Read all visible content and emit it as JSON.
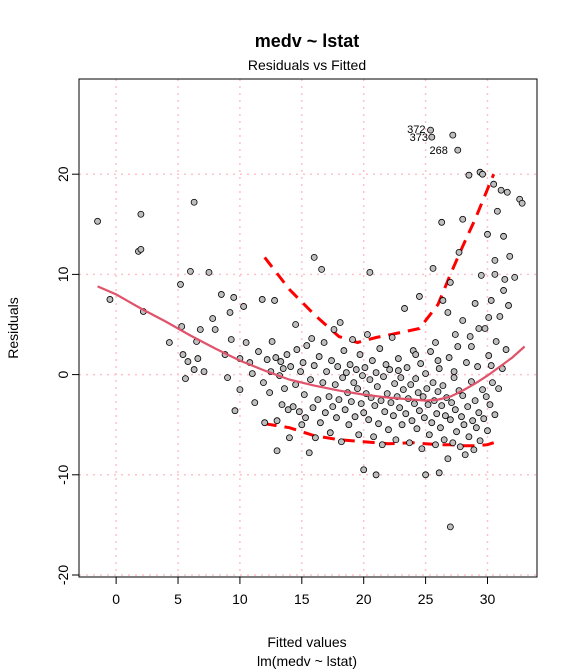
{
  "chart_data": {
    "type": "scatter",
    "title": "medv ~ lstat",
    "subtitle": "Residuals vs Fitted",
    "xlabel": "Fitted values",
    "xlabel2": "lm(medv ~ lstat)",
    "ylabel": "Residuals",
    "xlim": [
      -3,
      34
    ],
    "ylim": [
      -20.2,
      29.5
    ],
    "x_ticks": [
      0,
      5,
      10,
      15,
      20,
      25,
      30
    ],
    "y_ticks": [
      -20,
      -10,
      0,
      10,
      20
    ],
    "grid": true,
    "colors": {
      "point_fill": "#bebebe",
      "point_stroke": "#000000",
      "smooth_line": "#df536b",
      "band_line": "#ff0000",
      "grid": "#ffc0cb"
    },
    "annotations": [
      {
        "label": "372",
        "x": 25.4,
        "y": 24.5
      },
      {
        "label": "373",
        "x": 25.6,
        "y": 23.7
      },
      {
        "label": "268",
        "x": 27.2,
        "y": 22.4
      }
    ],
    "smooth": {
      "x": [
        -1.5,
        0,
        2,
        4,
        6,
        8,
        10,
        12,
        14,
        16,
        18,
        20,
        22,
        24,
        25,
        26,
        27,
        28,
        29,
        30,
        31,
        32,
        33
      ],
      "y": [
        8.8,
        8.0,
        6.6,
        5.3,
        3.9,
        2.6,
        1.4,
        0.4,
        -0.5,
        -1.1,
        -1.6,
        -2.0,
        -2.3,
        -2.5,
        -2.6,
        -2.5,
        -2.2,
        -1.6,
        -0.9,
        -0.1,
        0.8,
        1.7,
        2.8
      ]
    },
    "upper_band": {
      "x": [
        12,
        14,
        16,
        18,
        19.5,
        21,
        23,
        24.5,
        26,
        27,
        28,
        29,
        30,
        30.5
      ],
      "y": [
        11.7,
        8.5,
        6.0,
        3.8,
        3.2,
        3.7,
        4.2,
        4.6,
        7.0,
        10.0,
        12.8,
        15.5,
        18.5,
        20.0
      ]
    },
    "lower_band": {
      "x": [
        12,
        14,
        16,
        18,
        20,
        22,
        24,
        25,
        26,
        27,
        28,
        29,
        30,
        30.5
      ],
      "y": [
        -4.9,
        -5.3,
        -6.1,
        -6.5,
        -6.7,
        -6.9,
        -6.8,
        -6.9,
        -7.0,
        -7.0,
        -7.1,
        -7.1,
        -7.0,
        -6.8
      ]
    },
    "points": [
      [
        -1.5,
        15.3
      ],
      [
        -0.5,
        7.5
      ],
      [
        1.8,
        12.3
      ],
      [
        2.0,
        16.0
      ],
      [
        2.0,
        12.5
      ],
      [
        2.2,
        6.3
      ],
      [
        4.3,
        3.2
      ],
      [
        5.2,
        9.0
      ],
      [
        5.3,
        4.8
      ],
      [
        5.4,
        2.0
      ],
      [
        5.6,
        -0.4
      ],
      [
        5.8,
        1.3
      ],
      [
        6.0,
        10.3
      ],
      [
        6.3,
        17.2
      ],
      [
        6.3,
        0.5
      ],
      [
        6.5,
        3.3
      ],
      [
        6.6,
        1.6
      ],
      [
        6.8,
        4.5
      ],
      [
        7.1,
        0.3
      ],
      [
        7.5,
        10.2
      ],
      [
        7.8,
        5.6
      ],
      [
        8.0,
        4.5
      ],
      [
        8.5,
        8.0
      ],
      [
        8.8,
        2.0
      ],
      [
        9.0,
        -0.3
      ],
      [
        9.2,
        6.2
      ],
      [
        9.3,
        3.5
      ],
      [
        9.5,
        7.7
      ],
      [
        9.6,
        -3.6
      ],
      [
        10.0,
        1.6
      ],
      [
        10.0,
        -1.5
      ],
      [
        10.3,
        6.8
      ],
      [
        10.5,
        3.2
      ],
      [
        10.8,
        1.2
      ],
      [
        11.0,
        0.1
      ],
      [
        11.2,
        -2.8
      ],
      [
        11.5,
        2.3
      ],
      [
        11.8,
        7.5
      ],
      [
        11.9,
        -0.8
      ],
      [
        12.0,
        -4.8
      ],
      [
        12.2,
        1.5
      ],
      [
        12.4,
        -1.8
      ],
      [
        12.5,
        0.3
      ],
      [
        12.6,
        3.3
      ],
      [
        12.8,
        7.4
      ],
      [
        12.9,
        1.7
      ],
      [
        13.0,
        -4.6
      ],
      [
        13.0,
        -7.6
      ],
      [
        13.2,
        -0.1
      ],
      [
        13.3,
        1.3
      ],
      [
        13.4,
        -3.0
      ],
      [
        13.5,
        0.6
      ],
      [
        13.6,
        -1.4
      ],
      [
        13.8,
        2.0
      ],
      [
        13.9,
        -3.5
      ],
      [
        14.0,
        -6.3
      ],
      [
        14.1,
        0.8
      ],
      [
        14.3,
        -3.2
      ],
      [
        14.5,
        5.0
      ],
      [
        14.5,
        -1.0
      ],
      [
        14.6,
        2.5
      ],
      [
        14.8,
        -3.7
      ],
      [
        14.9,
        0.3
      ],
      [
        15.0,
        -5.0
      ],
      [
        15.1,
        1.2
      ],
      [
        15.2,
        -2.0
      ],
      [
        15.3,
        -4.3
      ],
      [
        15.4,
        2.9
      ],
      [
        15.6,
        -7.8
      ],
      [
        15.7,
        -0.5
      ],
      [
        15.8,
        3.6
      ],
      [
        15.9,
        -3.3
      ],
      [
        16.0,
        11.7
      ],
      [
        16.0,
        0.9
      ],
      [
        16.1,
        -6.3
      ],
      [
        16.3,
        -2.5
      ],
      [
        16.4,
        1.8
      ],
      [
        16.5,
        -4.8
      ],
      [
        16.6,
        10.5
      ],
      [
        16.7,
        -0.8
      ],
      [
        16.8,
        3.2
      ],
      [
        16.9,
        -3.8
      ],
      [
        17.0,
        0.3
      ],
      [
        17.2,
        -2.2
      ],
      [
        17.3,
        -5.8
      ],
      [
        17.4,
        1.4
      ],
      [
        17.5,
        -3.2
      ],
      [
        17.6,
        4.5
      ],
      [
        17.7,
        -1.0
      ],
      [
        17.8,
        -4.3
      ],
      [
        17.9,
        0.8
      ],
      [
        18.0,
        -2.5
      ],
      [
        18.1,
        5.2
      ],
      [
        18.2,
        -6.7
      ],
      [
        18.3,
        -0.3
      ],
      [
        18.4,
        2.4
      ],
      [
        18.5,
        -3.5
      ],
      [
        18.6,
        0.2
      ],
      [
        18.7,
        -1.8
      ],
      [
        18.8,
        -5.0
      ],
      [
        18.9,
        1.0
      ],
      [
        19.0,
        -2.7
      ],
      [
        19.1,
        3.5
      ],
      [
        19.2,
        -0.8
      ],
      [
        19.3,
        -4.2
      ],
      [
        19.4,
        0.5
      ],
      [
        19.5,
        -1.4
      ],
      [
        19.6,
        -6.0
      ],
      [
        19.7,
        2.0
      ],
      [
        19.8,
        -2.9
      ],
      [
        19.9,
        -0.1
      ],
      [
        20.0,
        -9.5
      ],
      [
        20.0,
        -3.8
      ],
      [
        20.1,
        0.7
      ],
      [
        20.2,
        -1.9
      ],
      [
        20.3,
        4.0
      ],
      [
        20.4,
        -4.5
      ],
      [
        20.5,
        10.2
      ],
      [
        20.5,
        -0.5
      ],
      [
        20.6,
        -2.3
      ],
      [
        20.7,
        1.4
      ],
      [
        20.8,
        -6.2
      ],
      [
        20.9,
        -3.1
      ],
      [
        21.0,
        -10.0
      ],
      [
        21.0,
        0.2
      ],
      [
        21.1,
        -1.2
      ],
      [
        21.2,
        -4.9
      ],
      [
        21.3,
        2.6
      ],
      [
        21.4,
        -2.6
      ],
      [
        21.5,
        -7.0
      ],
      [
        21.6,
        -0.2
      ],
      [
        21.7,
        -3.7
      ],
      [
        21.8,
        1.0
      ],
      [
        21.9,
        -1.9
      ],
      [
        22.0,
        -5.5
      ],
      [
        22.1,
        0.5
      ],
      [
        22.2,
        -2.8
      ],
      [
        22.3,
        3.7
      ],
      [
        22.4,
        -4.1
      ],
      [
        22.5,
        -0.9
      ],
      [
        22.6,
        -6.5
      ],
      [
        22.7,
        -2.2
      ],
      [
        22.8,
        1.6
      ],
      [
        22.9,
        -3.3
      ],
      [
        23.0,
        -0.3
      ],
      [
        23.1,
        -5.0
      ],
      [
        23.2,
        -1.5
      ],
      [
        23.3,
        6.6
      ],
      [
        23.4,
        -3.9
      ],
      [
        23.5,
        0.7
      ],
      [
        23.6,
        -2.4
      ],
      [
        23.7,
        -6.8
      ],
      [
        23.8,
        -1.0
      ],
      [
        23.9,
        -4.6
      ],
      [
        24.0,
        2.4
      ],
      [
        24.1,
        -2.9
      ],
      [
        24.2,
        -0.4
      ],
      [
        24.3,
        -5.4
      ],
      [
        24.4,
        -1.8
      ],
      [
        24.5,
        -3.6
      ],
      [
        24.6,
        1.1
      ],
      [
        24.7,
        -7.4
      ],
      [
        24.8,
        -2.2
      ],
      [
        24.9,
        -4.3
      ],
      [
        25.0,
        -10.0
      ],
      [
        25.0,
        0.1
      ],
      [
        25.1,
        -1.4
      ],
      [
        25.2,
        -3.0
      ],
      [
        25.3,
        -6.0
      ],
      [
        25.4,
        2.3
      ],
      [
        25.5,
        -4.8
      ],
      [
        25.6,
        10.6
      ],
      [
        25.6,
        -0.8
      ],
      [
        25.7,
        -2.6
      ],
      [
        25.8,
        -7.0
      ],
      [
        25.9,
        -3.9
      ],
      [
        26.0,
        -1.7
      ],
      [
        26.1,
        -9.8
      ],
      [
        26.1,
        0.6
      ],
      [
        26.2,
        -5.3
      ],
      [
        26.3,
        -3.1
      ],
      [
        26.4,
        7.4
      ],
      [
        26.4,
        -1.1
      ],
      [
        26.5,
        -6.5
      ],
      [
        26.6,
        -4.1
      ],
      [
        26.7,
        -2.3
      ],
      [
        26.8,
        -8.4
      ],
      [
        26.9,
        1.7
      ],
      [
        27.0,
        -15.2
      ],
      [
        27.0,
        -4.5
      ],
      [
        27.1,
        -2.8
      ],
      [
        27.2,
        -6.8
      ],
      [
        27.3,
        0.3
      ],
      [
        27.4,
        -3.5
      ],
      [
        27.5,
        -5.7
      ],
      [
        27.6,
        2.8
      ],
      [
        27.7,
        -1.6
      ],
      [
        27.8,
        -7.2
      ],
      [
        27.9,
        -4.2
      ],
      [
        28.0,
        5.4
      ],
      [
        28.0,
        -2.1
      ],
      [
        28.1,
        -5.0
      ],
      [
        28.2,
        -8.0
      ],
      [
        28.3,
        1.2
      ],
      [
        28.4,
        -3.2
      ],
      [
        28.5,
        -6.2
      ],
      [
        28.6,
        3.8
      ],
      [
        28.7,
        -0.7
      ],
      [
        28.8,
        -4.6
      ],
      [
        28.9,
        -7.5
      ],
      [
        29.0,
        7.1
      ],
      [
        29.0,
        -2.6
      ],
      [
        29.1,
        -5.3
      ],
      [
        29.2,
        0.8
      ],
      [
        29.3,
        -3.8
      ],
      [
        29.4,
        20.2
      ],
      [
        29.4,
        -6.6
      ],
      [
        29.5,
        9.9
      ],
      [
        29.6,
        -1.5
      ],
      [
        29.7,
        -4.4
      ],
      [
        29.8,
        4.6
      ],
      [
        29.9,
        -2.2
      ],
      [
        30.0,
        14.0
      ],
      [
        30.0,
        -5.6
      ],
      [
        30.1,
        1.9
      ],
      [
        30.2,
        -3.0
      ],
      [
        30.3,
        7.4
      ],
      [
        30.4,
        -0.8
      ],
      [
        30.5,
        19.0
      ],
      [
        30.6,
        11.4
      ],
      [
        30.6,
        -4.0
      ],
      [
        30.7,
        3.3
      ],
      [
        30.8,
        16.3
      ],
      [
        30.9,
        -1.4
      ],
      [
        31.0,
        5.8
      ],
      [
        31.1,
        18.4
      ],
      [
        31.2,
        0.6
      ],
      [
        31.3,
        13.8
      ],
      [
        31.4,
        9.5
      ],
      [
        31.5,
        2.5
      ],
      [
        31.6,
        18.2
      ],
      [
        31.7,
        6.9
      ],
      [
        31.8,
        11.8
      ],
      [
        32.2,
        9.7
      ],
      [
        32.6,
        17.5
      ],
      [
        32.8,
        17.1
      ],
      [
        27.6,
        22.4
      ],
      [
        25.4,
        24.4
      ],
      [
        25.5,
        23.7
      ],
      [
        27.2,
        23.9
      ],
      [
        29.6,
        20.0
      ],
      [
        28.5,
        19.9
      ],
      [
        26.3,
        15.2
      ],
      [
        28.0,
        15.5
      ],
      [
        27.7,
        12.2
      ],
      [
        30.6,
        10.0
      ],
      [
        27.0,
        9.2
      ],
      [
        31.3,
        8.4
      ],
      [
        24.5,
        7.8
      ],
      [
        26.8,
        6.2
      ],
      [
        30.1,
        5.7
      ],
      [
        29.3,
        4.6
      ],
      [
        27.4,
        4.0
      ],
      [
        25.8,
        3.2
      ],
      [
        28.7,
        2.8
      ],
      [
        24.2,
        2.0
      ],
      [
        26.0,
        1.4
      ],
      [
        30.3,
        0.9
      ],
      [
        22.8,
        0.4
      ],
      [
        27.3,
        -0.3
      ]
    ]
  }
}
